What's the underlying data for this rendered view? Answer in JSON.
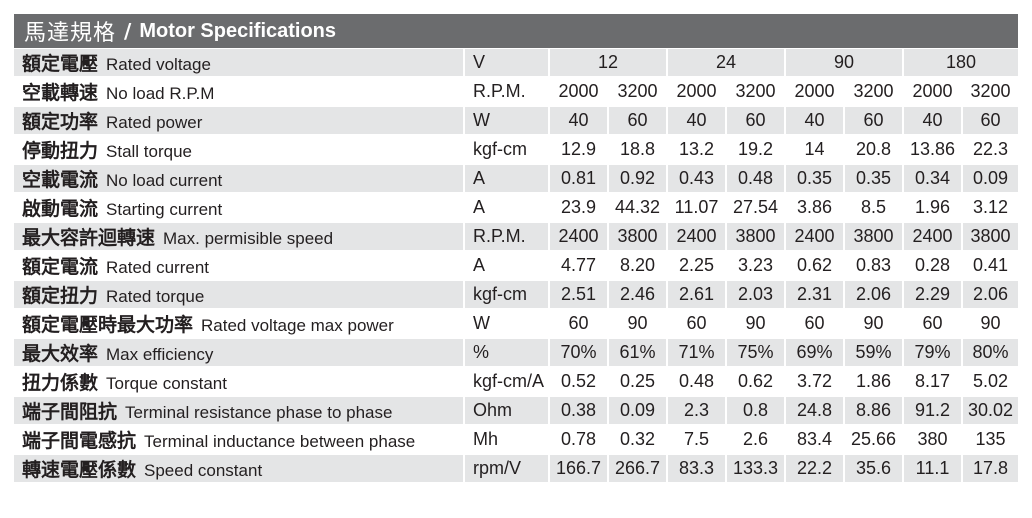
{
  "header": {
    "title_zh": "馬達規格",
    "separator": "/",
    "title_en": "Motor Specifications"
  },
  "voltage_row": {
    "zh": "額定電壓",
    "en": "Rated voltage",
    "unit": "V",
    "voltages": [
      "12",
      "24",
      "90",
      "180"
    ]
  },
  "rows": [
    {
      "zh": "空載轉速",
      "en": "No load R.P.M",
      "unit": "R.P.M.",
      "values": [
        "2000",
        "3200",
        "2000",
        "3200",
        "2000",
        "3200",
        "2000",
        "3200"
      ]
    },
    {
      "zh": "額定功率",
      "en": "Rated power",
      "unit": "W",
      "values": [
        "40",
        "60",
        "40",
        "60",
        "40",
        "60",
        "40",
        "60"
      ]
    },
    {
      "zh": "停動扭力",
      "en": "Stall torque",
      "unit": "kgf-cm",
      "values": [
        "12.9",
        "18.8",
        "13.2",
        "19.2",
        "14",
        "20.8",
        "13.86",
        "22.3"
      ]
    },
    {
      "zh": "空載電流",
      "en": "No load current",
      "unit": "A",
      "values": [
        "0.81",
        "0.92",
        "0.43",
        "0.48",
        "0.35",
        "0.35",
        "0.34",
        "0.09"
      ]
    },
    {
      "zh": "啟動電流",
      "en": "Starting current",
      "unit": "A",
      "values": [
        "23.9",
        "44.32",
        "11.07",
        "27.54",
        "3.86",
        "8.5",
        "1.96",
        "3.12"
      ]
    },
    {
      "zh": "最大容許迴轉速",
      "en": "Max. permisible speed",
      "unit": "R.P.M.",
      "values": [
        "2400",
        "3800",
        "2400",
        "3800",
        "2400",
        "3800",
        "2400",
        "3800"
      ]
    },
    {
      "zh": "額定電流",
      "en": "Rated current",
      "unit": "A",
      "values": [
        "4.77",
        "8.20",
        "2.25",
        "3.23",
        "0.62",
        "0.83",
        "0.28",
        "0.41"
      ]
    },
    {
      "zh": "額定扭力",
      "en": "Rated torque",
      "unit": "kgf-cm",
      "values": [
        "2.51",
        "2.46",
        "2.61",
        "2.03",
        "2.31",
        "2.06",
        "2.29",
        "2.06"
      ]
    },
    {
      "zh": "額定電壓時最大功率",
      "en": "Rated voltage max power",
      "unit": "W",
      "values": [
        "60",
        "90",
        "60",
        "90",
        "60",
        "90",
        "60",
        "90"
      ]
    },
    {
      "zh": "最大效率",
      "en": "Max efficiency",
      "unit": "%",
      "values": [
        "70%",
        "61%",
        "71%",
        "75%",
        "69%",
        "59%",
        "79%",
        "80%"
      ]
    },
    {
      "zh": "扭力係數",
      "en": "Torque constant",
      "unit": "kgf-cm/A",
      "values": [
        "0.52",
        "0.25",
        "0.48",
        "0.62",
        "3.72",
        "1.86",
        "8.17",
        "5.02"
      ]
    },
    {
      "zh": "端子間阻抗",
      "en": "Terminal resistance phase to phase",
      "unit": "Ohm",
      "values": [
        "0.38",
        "0.09",
        "2.3",
        "0.8",
        "24.8",
        "8.86",
        "91.2",
        "30.02"
      ]
    },
    {
      "zh": "端子間電感抗",
      "en": "Terminal inductance between phase",
      "unit": "Mh",
      "values": [
        "0.78",
        "0.32",
        "7.5",
        "2.6",
        "83.4",
        "25.66",
        "380",
        "135"
      ]
    },
    {
      "zh": "轉速電壓係數",
      "en": "Speed constant",
      "unit": "rpm/V",
      "values": [
        "166.7",
        "266.7",
        "83.3",
        "133.3",
        "22.2",
        "35.6",
        "11.1",
        "17.8"
      ]
    }
  ]
}
